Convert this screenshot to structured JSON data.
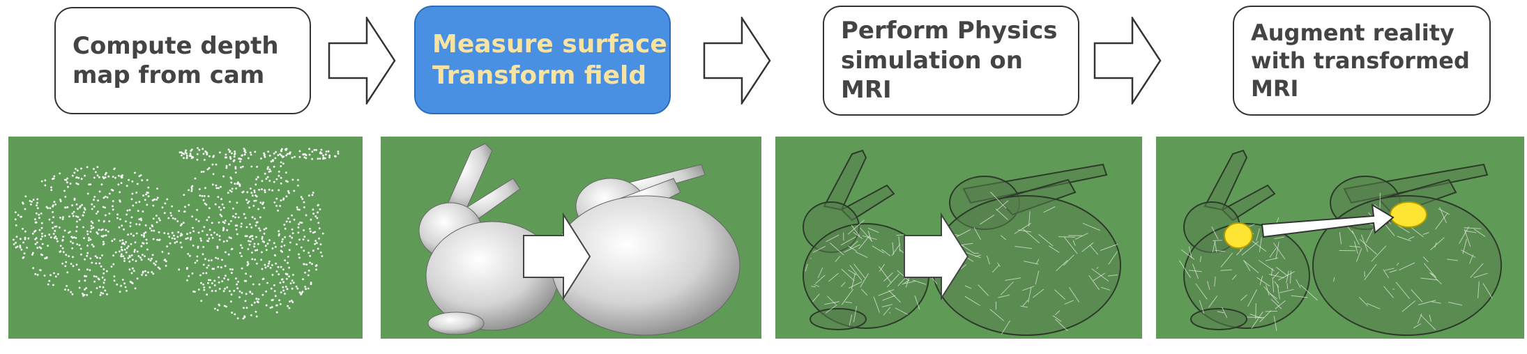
{
  "steps": [
    {
      "lines": [
        "Compute depth",
        "map from cam"
      ]
    },
    {
      "lines": [
        "Measure surface",
        "Transform field"
      ],
      "highlighted": true
    },
    {
      "lines": [
        "Perform Physics",
        "simulation on",
        "MRI"
      ]
    },
    {
      "lines": [
        "Augment reality",
        "with transformed",
        "MRI"
      ]
    }
  ],
  "panels": [
    {
      "content": "point-cloud"
    },
    {
      "content": "solid-bunnies-with-arrow"
    },
    {
      "content": "wireframe-bunnies-with-arrow"
    },
    {
      "content": "wireframe-bunnies-with-yellow-markers-and-arrow"
    }
  ],
  "colors": {
    "panel_background": "#5f9a57",
    "highlight_box": "#4a90e2",
    "highlight_text": "#f9e3a0",
    "marker": "#ffe533"
  }
}
